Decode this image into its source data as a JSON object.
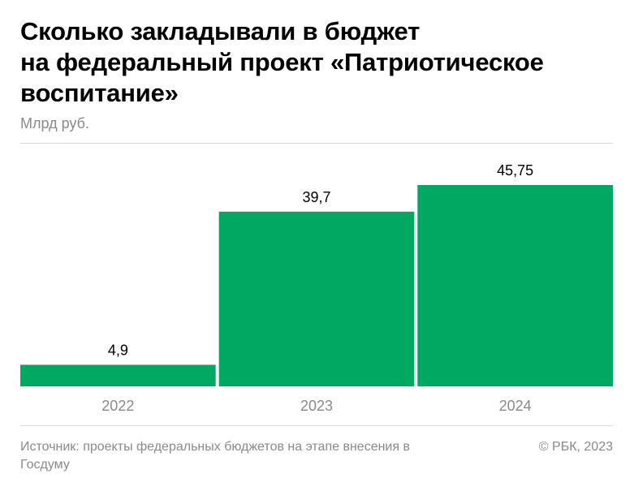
{
  "header": {
    "title_lines": [
      "Сколько закладывали в бюджет",
      "на федеральный проект «Патриотическое",
      "воспитание»"
    ],
    "unit": "Млрд руб."
  },
  "footer": {
    "source": "Источник: проекты федеральных бюджетов на этапе внесения в Госдуму",
    "copyright": "© РБК, 2023"
  },
  "colors": {
    "bar": "#00a862",
    "text": "#000000",
    "muted": "#8a8a8a",
    "rule": "#d9d9d9"
  },
  "chart_data": {
    "type": "bar",
    "title": "Сколько закладывали в бюджет на федеральный проект «Патриотическое воспитание»",
    "ylabel": "Млрд руб.",
    "categories": [
      "2022",
      "2023",
      "2024"
    ],
    "values": [
      4.9,
      39.7,
      45.75
    ],
    "value_labels": [
      "4,9",
      "39,7",
      "45,75"
    ],
    "ylim": [
      0,
      45.75
    ],
    "grid": false,
    "legend": "none"
  }
}
